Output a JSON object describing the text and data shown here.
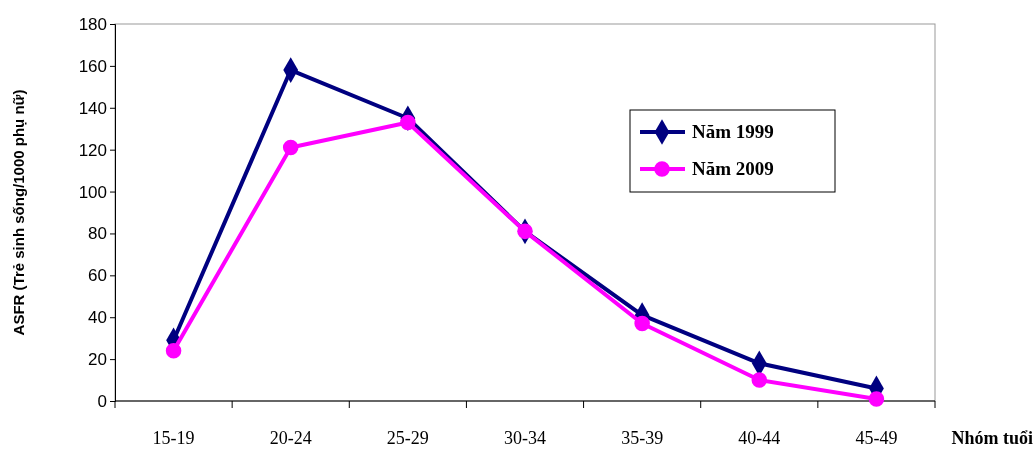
{
  "chart_data": {
    "type": "line",
    "xlabel": "Nhóm tuổi",
    "ylabel": "ASFR (Trẻ sinh sống/1000 phụ nữ)",
    "categories": [
      "15-19",
      "20-24",
      "25-29",
      "30-34",
      "35-39",
      "40-44",
      "45-49"
    ],
    "ylim": [
      0,
      180
    ],
    "yticks": [
      0,
      20,
      40,
      60,
      80,
      100,
      120,
      140,
      160,
      180
    ],
    "grid": false,
    "legend": "top right",
    "line_style": "solid",
    "series": [
      {
        "name": "Năm 1999",
        "color": "#000080",
        "marker": "diamond",
        "values": [
          29,
          158,
          135,
          81,
          41,
          18,
          6
        ]
      },
      {
        "name": "Năm 2009",
        "color": "#ff00ff",
        "marker": "circle",
        "values": [
          24,
          121,
          133,
          81,
          37,
          10,
          1
        ]
      }
    ]
  }
}
